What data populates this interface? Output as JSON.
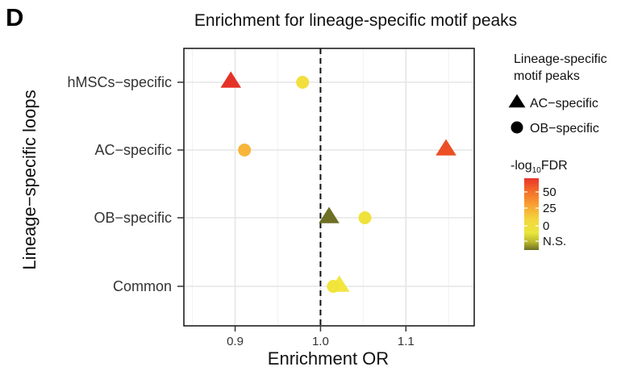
{
  "panel": {
    "letter": "D"
  },
  "chart_data": {
    "type": "scatter",
    "title": "Enrichment for lineage-specific motif peaks",
    "xlabel": "Enrichment OR",
    "ylabel": "Lineage−specific loops",
    "categories": [
      "hMSCs−specific",
      "AC−specific",
      "OB−specific",
      "Common"
    ],
    "xlim": [
      0.84,
      1.18
    ],
    "xticks": [
      0.9,
      1.0,
      1.1
    ],
    "xtick_labels": [
      "0.9",
      "1.0",
      "1.1"
    ],
    "reference_line": 1.0,
    "reference_line_style": "dashed",
    "grid": true,
    "legend_position": "right",
    "series": [
      {
        "name": "AC−specific",
        "shape": "triangle",
        "points": [
          {
            "category": "hMSCs−specific",
            "x": 0.895,
            "neg_log10_fdr": 55,
            "color": "#e53228"
          },
          {
            "category": "AC−specific",
            "x": 1.147,
            "neg_log10_fdr": 48,
            "color": "#ec4f24"
          },
          {
            "category": "OB−specific",
            "x": 1.01,
            "neg_log10_fdr": null,
            "color": "#6c6f24"
          },
          {
            "category": "Common",
            "x": 1.022,
            "neg_log10_fdr": 2,
            "color": "#f2e63f"
          }
        ]
      },
      {
        "name": "OB−specific",
        "shape": "circle",
        "points": [
          {
            "category": "hMSCs−specific",
            "x": 0.979,
            "neg_log10_fdr": 3,
            "color": "#f2df3e"
          },
          {
            "category": "AC−specific",
            "x": 0.911,
            "neg_log10_fdr": 20,
            "color": "#f8b53a"
          },
          {
            "category": "OB−specific",
            "x": 1.052,
            "neg_log10_fdr": 2,
            "color": "#efe23a"
          },
          {
            "category": "Common",
            "x": 1.015,
            "neg_log10_fdr": 2,
            "color": "#f1e43a"
          }
        ]
      }
    ],
    "legend": {
      "title_lines": [
        "Lineage-specific",
        "motif peaks"
      ],
      "items": [
        {
          "label": "AC−specific",
          "shape": "triangle",
          "color": "#000000"
        },
        {
          "label": "OB−specific",
          "shape": "circle",
          "color": "#000000"
        }
      ]
    },
    "colorbar": {
      "title_prefix": "-log",
      "title_subscript": "10",
      "title_suffix": "FDR",
      "min": 0,
      "max": 60,
      "ticks": [
        {
          "value": 50,
          "label": "50"
        },
        {
          "value": 25,
          "label": "25"
        },
        {
          "value": 0,
          "label": "0"
        },
        {
          "value": null,
          "label": "N.S."
        }
      ],
      "colors": [
        "#e7342b",
        "#f36e28",
        "#f9a333",
        "#f2d73d",
        "#eae63c",
        "#b9b72e",
        "#6c6f24"
      ]
    }
  }
}
